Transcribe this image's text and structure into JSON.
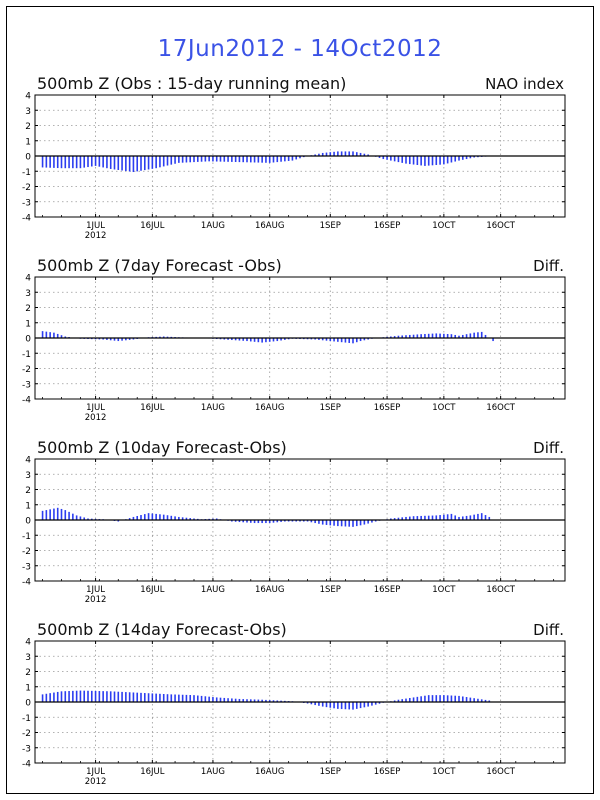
{
  "title": "17Jun2012 - 14Oct2012",
  "x_ticks": [
    {
      "label": "1JUL",
      "sub": "2012",
      "day": 14
    },
    {
      "label": "16JUL",
      "sub": "",
      "day": 29
    },
    {
      "label": "1AUG",
      "sub": "",
      "day": 45
    },
    {
      "label": "16AUG",
      "sub": "",
      "day": 60
    },
    {
      "label": "1SEP",
      "sub": "",
      "day": 76
    },
    {
      "label": "16SEP",
      "sub": "",
      "day": 91
    },
    {
      "label": "1OCT",
      "sub": "",
      "day": 106
    },
    {
      "label": "16OCT",
      "sub": "",
      "day": 121
    }
  ],
  "y_ticks": [
    "4",
    "3",
    "2",
    "1",
    "0",
    "-1",
    "-2",
    "-3",
    "-4"
  ],
  "chart_data": [
    {
      "type": "bar",
      "title": "500mb Z (Obs : 15-day running mean)",
      "right_label": "NAO index",
      "ylim": [
        -4,
        4
      ],
      "grid": true,
      "knots": [
        [
          0,
          -0.75
        ],
        [
          5,
          -0.8
        ],
        [
          10,
          -0.8
        ],
        [
          14,
          -0.65
        ],
        [
          18,
          -0.85
        ],
        [
          24,
          -1.05
        ],
        [
          30,
          -0.8
        ],
        [
          36,
          -0.45
        ],
        [
          44,
          -0.35
        ],
        [
          52,
          -0.4
        ],
        [
          60,
          -0.45
        ],
        [
          66,
          -0.3
        ],
        [
          70,
          0.0
        ],
        [
          74,
          0.2
        ],
        [
          78,
          0.3
        ],
        [
          82,
          0.3
        ],
        [
          86,
          0.1
        ],
        [
          90,
          -0.2
        ],
        [
          96,
          -0.5
        ],
        [
          101,
          -0.65
        ],
        [
          106,
          -0.55
        ],
        [
          110,
          -0.3
        ],
        [
          114,
          -0.1
        ],
        [
          119,
          0.0
        ]
      ]
    },
    {
      "type": "bar",
      "title": "500mb Z (7day Forecast -Obs)",
      "right_label": "Diff.",
      "ylim": [
        -4,
        4
      ],
      "grid": true,
      "knots": [
        [
          0,
          0.45
        ],
        [
          3,
          0.35
        ],
        [
          6,
          0.1
        ],
        [
          10,
          -0.05
        ],
        [
          16,
          -0.1
        ],
        [
          20,
          -0.2
        ],
        [
          24,
          -0.1
        ],
        [
          28,
          0.05
        ],
        [
          32,
          0.1
        ],
        [
          36,
          0.05
        ],
        [
          42,
          0.0
        ],
        [
          48,
          -0.1
        ],
        [
          54,
          -0.2
        ],
        [
          58,
          -0.3
        ],
        [
          62,
          -0.2
        ],
        [
          66,
          -0.05
        ],
        [
          72,
          -0.1
        ],
        [
          76,
          -0.2
        ],
        [
          80,
          -0.3
        ],
        [
          82,
          -0.35
        ],
        [
          84,
          -0.2
        ],
        [
          88,
          0.0
        ],
        [
          94,
          0.15
        ],
        [
          100,
          0.25
        ],
        [
          104,
          0.3
        ],
        [
          108,
          0.25
        ],
        [
          110,
          0.15
        ],
        [
          114,
          0.35
        ],
        [
          116,
          0.4
        ],
        [
          118,
          0.0
        ],
        [
          119,
          -0.2
        ]
      ]
    },
    {
      "type": "bar",
      "title": "500mb Z (10day Forecast-Obs)",
      "right_label": "Diff.",
      "ylim": [
        -4,
        4
      ],
      "grid": true,
      "knots": [
        [
          0,
          0.6
        ],
        [
          4,
          0.8
        ],
        [
          6,
          0.65
        ],
        [
          9,
          0.3
        ],
        [
          12,
          0.1
        ],
        [
          16,
          0.05
        ],
        [
          20,
          -0.1
        ],
        [
          24,
          0.2
        ],
        [
          28,
          0.45
        ],
        [
          32,
          0.35
        ],
        [
          36,
          0.2
        ],
        [
          42,
          0.05
        ],
        [
          46,
          0.1
        ],
        [
          50,
          -0.1
        ],
        [
          56,
          -0.2
        ],
        [
          60,
          -0.2
        ],
        [
          64,
          -0.1
        ],
        [
          70,
          -0.1
        ],
        [
          74,
          -0.3
        ],
        [
          78,
          -0.4
        ],
        [
          82,
          -0.45
        ],
        [
          85,
          -0.3
        ],
        [
          88,
          -0.1
        ],
        [
          92,
          0.1
        ],
        [
          98,
          0.25
        ],
        [
          104,
          0.3
        ],
        [
          108,
          0.4
        ],
        [
          110,
          0.2
        ],
        [
          113,
          0.3
        ],
        [
          116,
          0.45
        ],
        [
          118,
          0.2
        ],
        [
          119,
          0.0
        ]
      ]
    },
    {
      "type": "bar",
      "title": "500mb Z (14day Forecast-Obs)",
      "right_label": "Diff.",
      "ylim": [
        -4,
        4
      ],
      "grid": true,
      "knots": [
        [
          0,
          0.5
        ],
        [
          5,
          0.7
        ],
        [
          10,
          0.75
        ],
        [
          18,
          0.7
        ],
        [
          26,
          0.6
        ],
        [
          34,
          0.5
        ],
        [
          40,
          0.45
        ],
        [
          46,
          0.3
        ],
        [
          52,
          0.2
        ],
        [
          58,
          0.15
        ],
        [
          62,
          0.1
        ],
        [
          66,
          0.05
        ],
        [
          70,
          -0.1
        ],
        [
          74,
          -0.3
        ],
        [
          78,
          -0.45
        ],
        [
          82,
          -0.5
        ],
        [
          86,
          -0.3
        ],
        [
          90,
          -0.05
        ],
        [
          94,
          0.15
        ],
        [
          98,
          0.3
        ],
        [
          102,
          0.45
        ],
        [
          106,
          0.45
        ],
        [
          110,
          0.4
        ],
        [
          114,
          0.25
        ],
        [
          118,
          0.1
        ],
        [
          119,
          0.0
        ]
      ]
    }
  ]
}
